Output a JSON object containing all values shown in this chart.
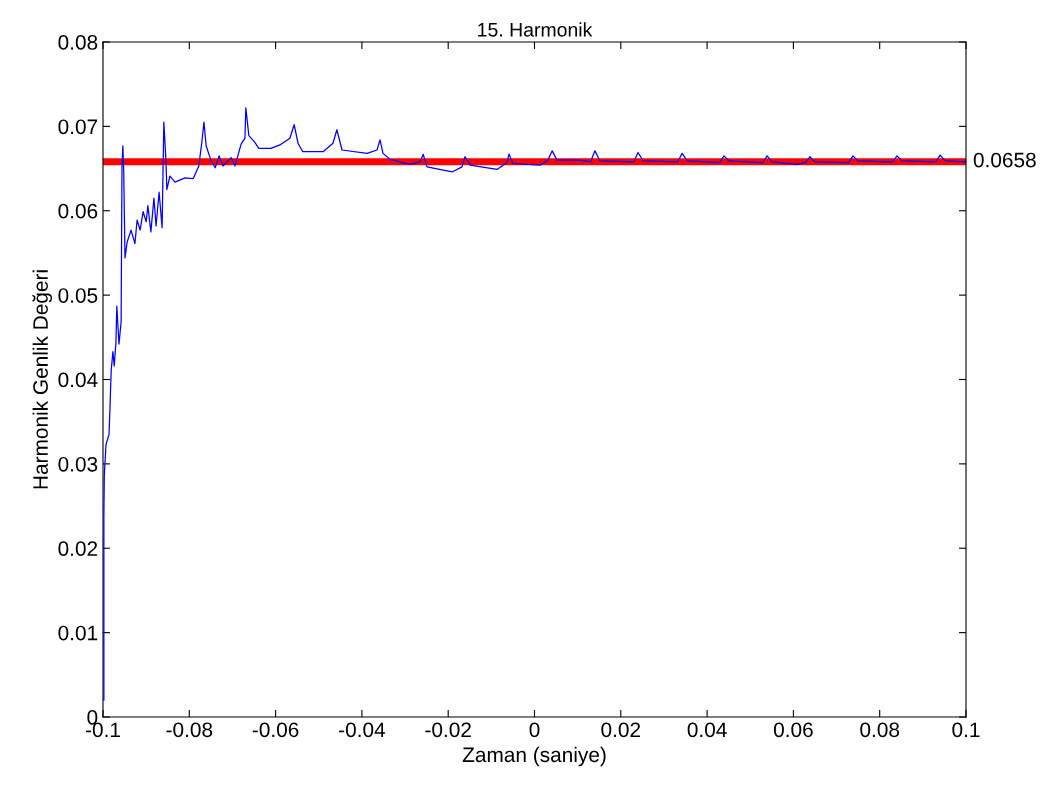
{
  "chart_data": {
    "type": "line",
    "title": "15. Harmonik",
    "xlabel": "Zaman (saniye)",
    "ylabel": "Harmonik Genlik Değeri",
    "xlim": [
      -0.1,
      0.1
    ],
    "xticks": [
      -0.1,
      -0.08,
      -0.06,
      -0.04,
      -0.02,
      0,
      0.02,
      0.04,
      0.06,
      0.08,
      0.1
    ],
    "ylim": [
      0,
      0.08
    ],
    "yticks": [
      0,
      0.01,
      0.02,
      0.03,
      0.04,
      0.05,
      0.06,
      0.07,
      0.08
    ],
    "grid": false,
    "legend": false,
    "marker": "none",
    "line_style": "solid",
    "series": [
      {
        "color": "#0000ff",
        "x": [
          -0.0998,
          -0.0998,
          -0.0997,
          -0.0993,
          -0.0986,
          -0.0984,
          -0.0981,
          -0.0977,
          -0.0974,
          -0.097,
          -0.0968,
          -0.0963,
          -0.0958,
          -0.0956,
          -0.0954,
          -0.0952,
          -0.0949,
          -0.0944,
          -0.0935,
          -0.0926,
          -0.0921,
          -0.0914,
          -0.0907,
          -0.09,
          -0.0896,
          -0.0889,
          -0.0882,
          -0.0877,
          -0.087,
          -0.0863,
          -0.0859,
          -0.0854,
          -0.0852,
          -0.0845,
          -0.0833,
          -0.081,
          -0.0791,
          -0.0778,
          -0.0771,
          -0.0766,
          -0.0761,
          -0.075,
          -0.074,
          -0.0731,
          -0.0722,
          -0.0703,
          -0.0694,
          -0.068,
          -0.0671,
          -0.0669,
          -0.0662,
          -0.0648,
          -0.0639,
          -0.0611,
          -0.059,
          -0.0567,
          -0.0557,
          -0.0548,
          -0.0537,
          -0.049,
          -0.0467,
          -0.0458,
          -0.0446,
          -0.0388,
          -0.0365,
          -0.0358,
          -0.0351,
          -0.0335,
          -0.0289,
          -0.0265,
          -0.0258,
          -0.0249,
          -0.0191,
          -0.0168,
          -0.0161,
          -0.0149,
          -0.0087,
          -0.0064,
          -0.0059,
          -0.005,
          0.0013,
          0.0031,
          0.0041,
          0.0052,
          0.0105,
          0.013,
          0.014,
          0.0152,
          0.023,
          0.024,
          0.0252,
          0.0332,
          0.0342,
          0.0354,
          0.0429,
          0.0439,
          0.0451,
          0.0529,
          0.0539,
          0.0551,
          0.0608,
          0.0628,
          0.0638,
          0.065,
          0.0728,
          0.0738,
          0.075,
          0.083,
          0.084,
          0.0852,
          0.093,
          0.094,
          0.0952,
          0.1
        ],
        "values": [
          0.002,
          0.0236,
          0.0286,
          0.0323,
          0.0335,
          0.0364,
          0.0411,
          0.0433,
          0.0416,
          0.0444,
          0.0487,
          0.0442,
          0.0468,
          0.0651,
          0.0677,
          0.0648,
          0.0544,
          0.0563,
          0.0577,
          0.0561,
          0.0589,
          0.0577,
          0.0599,
          0.0587,
          0.0606,
          0.0575,
          0.0615,
          0.0582,
          0.0622,
          0.058,
          0.0705,
          0.0658,
          0.0625,
          0.0641,
          0.0634,
          0.0639,
          0.0638,
          0.0653,
          0.0681,
          0.0705,
          0.0677,
          0.066,
          0.0651,
          0.0665,
          0.0653,
          0.0663,
          0.0653,
          0.0679,
          0.0686,
          0.0722,
          0.0689,
          0.0681,
          0.0674,
          0.0674,
          0.0678,
          0.0686,
          0.0702,
          0.068,
          0.067,
          0.067,
          0.068,
          0.0696,
          0.0672,
          0.0668,
          0.0672,
          0.0684,
          0.0668,
          0.0661,
          0.0655,
          0.0658,
          0.0667,
          0.0652,
          0.0646,
          0.0652,
          0.0664,
          0.0654,
          0.0649,
          0.0657,
          0.0667,
          0.0656,
          0.0654,
          0.066,
          0.0671,
          0.066,
          0.066,
          0.0658,
          0.0671,
          0.0659,
          0.0658,
          0.0669,
          0.0659,
          0.0658,
          0.0668,
          0.0659,
          0.0657,
          0.0665,
          0.0659,
          0.0657,
          0.0665,
          0.0658,
          0.0655,
          0.0657,
          0.0664,
          0.0658,
          0.0657,
          0.0665,
          0.0659,
          0.0658,
          0.0665,
          0.0659,
          0.0658,
          0.0666,
          0.0659,
          0.0658
        ]
      }
    ],
    "ref_lines": [
      {
        "axis": "y",
        "value": 0.0658,
        "label": "0.0658",
        "color": "#ff0000",
        "line_style": "solid"
      }
    ]
  }
}
